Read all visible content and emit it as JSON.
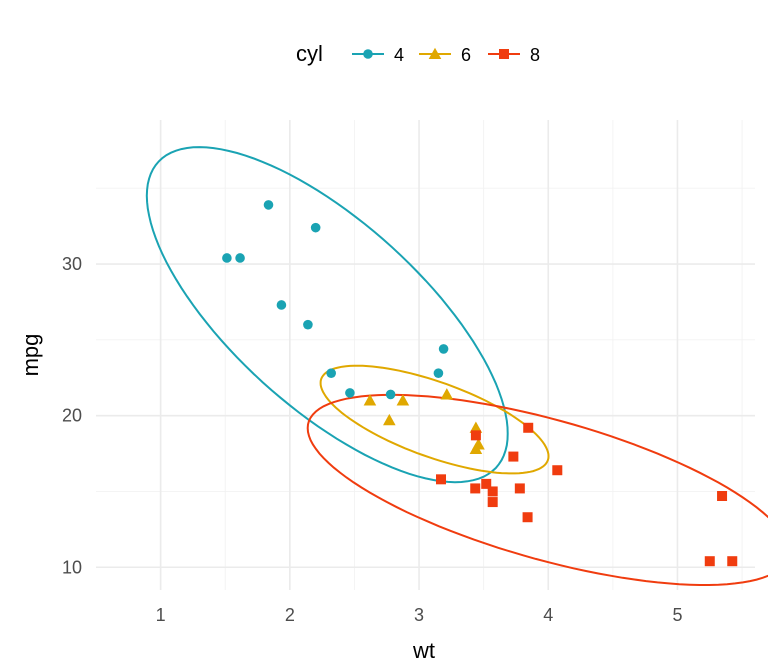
{
  "chart_data": {
    "type": "scatter",
    "xlabel": "wt",
    "ylabel": "mpg",
    "xlim": [
      0.5,
      5.6
    ],
    "ylim": [
      8.5,
      39.5
    ],
    "x_ticks": [
      1,
      2,
      3,
      4,
      5
    ],
    "y_ticks": [
      10,
      20,
      30
    ],
    "grid": true,
    "legend": {
      "title": "cyl",
      "placement": "top"
    },
    "series": [
      {
        "name": "4",
        "marker": "circle",
        "color": "#1aa3b3",
        "points": [
          [
            1.513,
            30.4
          ],
          [
            1.615,
            30.4
          ],
          [
            1.835,
            33.9
          ],
          [
            1.935,
            27.3
          ],
          [
            2.14,
            26.0
          ],
          [
            2.2,
            32.4
          ],
          [
            2.32,
            22.8
          ],
          [
            2.465,
            21.5
          ],
          [
            2.78,
            21.4
          ],
          [
            3.15,
            22.8
          ],
          [
            3.19,
            24.4
          ]
        ],
        "ellipse": {
          "center": [
            2.29,
            26.66
          ],
          "sd": [
            0.57,
            4.51
          ],
          "r": -0.71,
          "scale": 2.45
        }
      },
      {
        "name": "6",
        "marker": "triangle",
        "color": "#e0a800",
        "points": [
          [
            2.62,
            21.0
          ],
          [
            2.77,
            19.7
          ],
          [
            2.875,
            21.0
          ],
          [
            3.215,
            21.4
          ],
          [
            3.44,
            19.2
          ],
          [
            3.44,
            17.8
          ],
          [
            3.46,
            18.1
          ]
        ],
        "ellipse": {
          "center": [
            3.12,
            19.74
          ],
          "sd": [
            0.36,
            1.45
          ],
          "r": -0.68,
          "scale": 2.45
        }
      },
      {
        "name": "8",
        "marker": "square",
        "color": "#f03c0f",
        "points": [
          [
            3.17,
            15.8
          ],
          [
            3.44,
            18.7
          ],
          [
            3.435,
            15.2
          ],
          [
            3.52,
            15.5
          ],
          [
            3.57,
            14.3
          ],
          [
            3.57,
            15.0
          ],
          [
            3.73,
            17.3
          ],
          [
            3.78,
            15.2
          ],
          [
            3.84,
            13.3
          ],
          [
            3.845,
            19.2
          ],
          [
            4.07,
            16.4
          ],
          [
            5.25,
            10.4
          ],
          [
            5.345,
            14.7
          ],
          [
            5.424,
            10.4
          ]
        ],
        "ellipse": {
          "center": [
            4.0,
            15.1
          ],
          "sd": [
            0.76,
            2.56
          ],
          "r": -0.65,
          "scale": 2.45
        }
      }
    ]
  }
}
